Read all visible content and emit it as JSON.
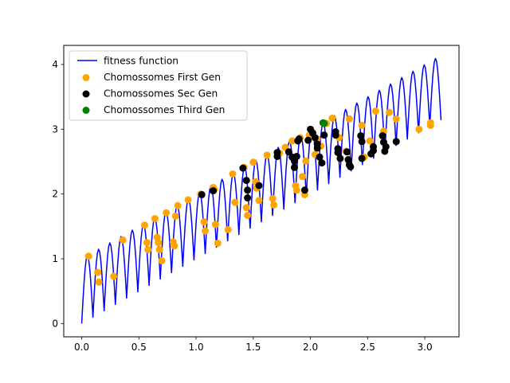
{
  "chart_data": {
    "type": "scatter",
    "title": "",
    "xlabel": "",
    "ylabel": "",
    "xlim": [
      -0.157,
      3.299
    ],
    "ylim": [
      -0.205,
      4.295
    ],
    "x_ticks": [
      0.0,
      0.5,
      1.0,
      1.5,
      2.0,
      2.5,
      3.0
    ],
    "y_ticks": [
      0,
      1,
      2,
      3,
      4
    ],
    "x_tick_labels": [
      "0.0",
      "0.5",
      "1.0",
      "1.5",
      "2.0",
      "2.5",
      "3.0"
    ],
    "y_tick_labels": [
      "0",
      "1",
      "2",
      "3",
      "4"
    ],
    "grid": false,
    "legend_position": "upper-left",
    "legend": [
      {
        "label": "fitness function",
        "kind": "line",
        "color": "#0000ff"
      },
      {
        "label": "Chomossomes First Gen",
        "kind": "marker",
        "color": "#ffa500"
      },
      {
        "label": "Chomossomes Sec Gen",
        "kind": "marker",
        "color": "#000000"
      },
      {
        "label": "Chomossomes Third Gen",
        "kind": "marker",
        "color": "#008000"
      }
    ],
    "fitness_function": {
      "type": "line",
      "x_range": [
        0.0,
        3.1416
      ],
      "points": 320,
      "expression": "x + |sin(32*x)|",
      "color": "#0000ff"
    },
    "series": [
      {
        "name": "Chomossomes First Gen",
        "type": "scatter",
        "color": "#ffa500",
        "points": [
          [
            0.06,
            1.04
          ],
          [
            0.14,
            0.79
          ],
          [
            0.15,
            0.64
          ],
          [
            0.28,
            0.73
          ],
          [
            0.36,
            1.29
          ],
          [
            0.55,
            1.52
          ],
          [
            0.57,
            1.25
          ],
          [
            0.58,
            1.14
          ],
          [
            0.64,
            1.62
          ],
          [
            0.66,
            1.33
          ],
          [
            0.67,
            1.25
          ],
          [
            0.68,
            1.14
          ],
          [
            0.7,
            0.97
          ],
          [
            0.74,
            1.71
          ],
          [
            0.8,
            1.26
          ],
          [
            0.81,
            1.2
          ],
          [
            0.82,
            1.66
          ],
          [
            0.84,
            1.82
          ],
          [
            0.93,
            1.91
          ],
          [
            1.04,
            2.0
          ],
          [
            1.07,
            1.57
          ],
          [
            1.08,
            1.43
          ],
          [
            1.15,
            2.1
          ],
          [
            1.16,
            2.07
          ],
          [
            1.17,
            1.53
          ],
          [
            1.19,
            1.24
          ],
          [
            1.28,
            1.45
          ],
          [
            1.32,
            2.31
          ],
          [
            1.34,
            1.87
          ],
          [
            1.42,
            2.41
          ],
          [
            1.44,
            1.79
          ],
          [
            1.45,
            1.67
          ],
          [
            1.5,
            2.49
          ],
          [
            1.52,
            2.19
          ],
          [
            1.53,
            2.09
          ],
          [
            1.55,
            1.9
          ],
          [
            1.62,
            2.6
          ],
          [
            1.67,
            1.93
          ],
          [
            1.68,
            1.83
          ],
          [
            1.73,
            2.63
          ],
          [
            1.78,
            2.72
          ],
          [
            1.84,
            2.82
          ],
          [
            1.87,
            2.13
          ],
          [
            1.88,
            2.06
          ],
          [
            1.91,
            2.87
          ],
          [
            1.93,
            2.27
          ],
          [
            1.95,
            1.99
          ],
          [
            1.96,
            2.51
          ],
          [
            1.99,
            2.91
          ],
          [
            2.02,
            2.95
          ],
          [
            2.04,
            2.61
          ],
          [
            2.06,
            2.85
          ],
          [
            2.09,
            2.74
          ],
          [
            2.14,
            3.09
          ],
          [
            2.19,
            3.17
          ],
          [
            2.25,
            2.87
          ],
          [
            2.31,
            2.66
          ],
          [
            2.34,
            3.16
          ],
          [
            2.45,
            3.06
          ],
          [
            2.47,
            2.57
          ],
          [
            2.52,
            2.82
          ],
          [
            2.57,
            3.28
          ],
          [
            2.64,
            2.97
          ],
          [
            2.69,
            3.26
          ],
          [
            2.75,
            3.16
          ],
          [
            2.95,
            3.0
          ],
          [
            3.05,
            3.1
          ],
          [
            3.05,
            3.06
          ]
        ]
      },
      {
        "name": "Chomossomes Sec Gen",
        "type": "scatter",
        "color": "#000000",
        "points": [
          [
            1.05,
            1.99
          ],
          [
            1.15,
            2.05
          ],
          [
            1.41,
            2.4
          ],
          [
            1.44,
            2.21
          ],
          [
            1.45,
            2.06
          ],
          [
            1.45,
            1.94
          ],
          [
            1.55,
            2.13
          ],
          [
            1.71,
            2.64
          ],
          [
            1.71,
            2.58
          ],
          [
            1.81,
            2.65
          ],
          [
            1.84,
            2.57
          ],
          [
            1.86,
            2.41
          ],
          [
            1.86,
            2.51
          ],
          [
            1.88,
            2.58
          ],
          [
            1.89,
            2.82
          ],
          [
            1.9,
            2.85
          ],
          [
            1.95,
            2.06
          ],
          [
            1.98,
            2.83
          ],
          [
            2.0,
            3.0
          ],
          [
            2.02,
            2.94
          ],
          [
            2.04,
            2.87
          ],
          [
            2.06,
            2.77
          ],
          [
            2.06,
            2.71
          ],
          [
            2.08,
            2.57
          ],
          [
            2.1,
            2.48
          ],
          [
            2.12,
            2.91
          ],
          [
            2.22,
            2.96
          ],
          [
            2.22,
            2.91
          ],
          [
            2.24,
            2.7
          ],
          [
            2.24,
            2.64
          ],
          [
            2.26,
            2.55
          ],
          [
            2.32,
            2.65
          ],
          [
            2.33,
            2.53
          ],
          [
            2.34,
            2.45
          ],
          [
            2.35,
            2.42
          ],
          [
            2.44,
            2.9
          ],
          [
            2.45,
            2.81
          ],
          [
            2.45,
            2.55
          ],
          [
            2.53,
            2.62
          ],
          [
            2.55,
            2.73
          ],
          [
            2.55,
            2.67
          ],
          [
            2.63,
            2.9
          ],
          [
            2.64,
            2.8
          ],
          [
            2.65,
            2.66
          ],
          [
            2.66,
            2.73
          ],
          [
            2.75,
            2.81
          ]
        ]
      },
      {
        "name": "Chomossomes Third Gen",
        "type": "scatter",
        "color": "#008000",
        "points": [
          [
            2.11,
            3.1
          ],
          [
            2.12,
            3.09
          ]
        ]
      }
    ]
  }
}
